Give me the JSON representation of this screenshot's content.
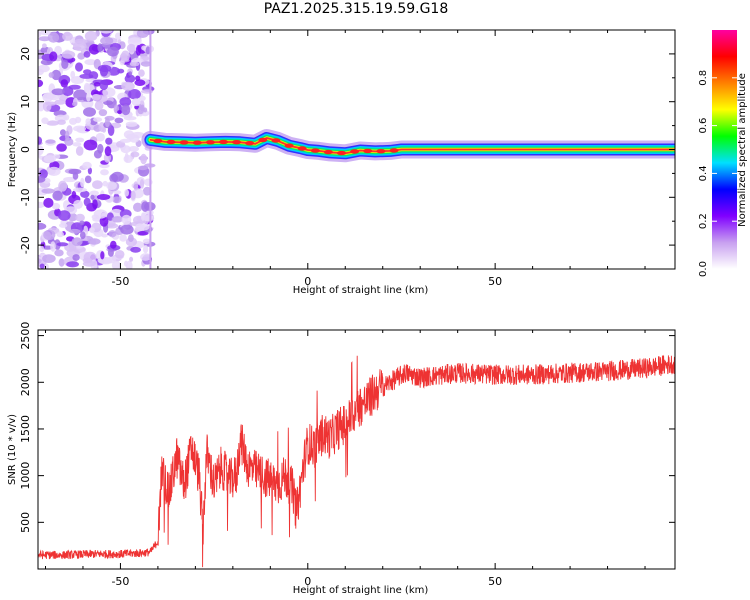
{
  "title": "PAZ1.2025.315.19.59.G18",
  "chart_data": [
    {
      "type": "heatmap",
      "title": "PAZ1.2025.315.19.59.G18",
      "xlabel": "Height of straight line (km)",
      "ylabel": "Frequency (Hz)",
      "xlim": [
        -72,
        98
      ],
      "ylim": [
        -25,
        25
      ],
      "xticks": [
        -50,
        0,
        50
      ],
      "yticks": [
        -20,
        -10,
        0,
        10,
        20
      ],
      "noise_region": {
        "x_range": [
          -72,
          -42
        ],
        "freq_range": [
          -25,
          25
        ],
        "level": "low (0.0-0.2)"
      },
      "ridge": {
        "height_km": [
          -42,
          -38,
          -34,
          -30,
          -26,
          -22,
          -18,
          -14,
          -11,
          -8,
          -5,
          -2,
          0,
          3,
          6,
          10,
          14,
          18,
          22,
          25,
          30,
          40,
          50,
          60,
          70,
          80,
          90,
          98
        ],
        "freq_hz": [
          2.0,
          1.6,
          1.5,
          1.4,
          1.5,
          1.6,
          1.5,
          1.2,
          2.4,
          1.8,
          0.8,
          0.3,
          -0.1,
          -0.3,
          -0.6,
          -0.8,
          -0.2,
          -0.4,
          -0.3,
          0.0,
          0.0,
          0.0,
          0.0,
          0.0,
          0.0,
          0.0,
          0.0,
          0.0
        ]
      },
      "colorbar": {
        "label": "Normalized spectral amplitude",
        "range": [
          0.0,
          1.0
        ],
        "ticks": [
          "0.0",
          "0.2",
          "0.4",
          "0.6",
          "0.8"
        ],
        "colors": [
          "#ffffff",
          "#c8a0f0",
          "#8000ff",
          "#0000ff",
          "#00e0ff",
          "#00ff00",
          "#ffff00",
          "#ff8000",
          "#ff0000",
          "#ff00a0"
        ]
      }
    },
    {
      "type": "line",
      "xlabel": "Height of straight line (km)",
      "ylabel": "SNR (10 * v/v)",
      "xlim": [
        -72,
        98
      ],
      "ylim": [
        0,
        2560
      ],
      "xticks": [
        -50,
        0,
        50
      ],
      "yticks": [
        500,
        1000,
        1500,
        2000,
        2500
      ],
      "color": "#ee3333",
      "x": [
        -72,
        -65,
        -58,
        -50,
        -45,
        -42,
        -40,
        -39,
        -37,
        -35,
        -33,
        -31,
        -29,
        -28,
        -27,
        -25,
        -23,
        -21,
        -19,
        -18,
        -16,
        -14,
        -12,
        -10,
        -8,
        -6,
        -4,
        -3,
        -1,
        0,
        2,
        4,
        6,
        8,
        10,
        12,
        14,
        16,
        18,
        20,
        22,
        24,
        26,
        30,
        40,
        50,
        60,
        70,
        80,
        90,
        98
      ],
      "y": [
        150,
        150,
        160,
        160,
        170,
        180,
        300,
        1050,
        800,
        1200,
        900,
        1300,
        1000,
        400,
        1250,
        900,
        1100,
        950,
        1000,
        1400,
        1100,
        1050,
        1000,
        950,
        900,
        1000,
        850,
        600,
        1150,
        1350,
        1300,
        1450,
        1400,
        1500,
        1550,
        1650,
        1750,
        1800,
        1900,
        1950,
        2000,
        2050,
        2100,
        2050,
        2100,
        2080,
        2080,
        2100,
        2120,
        2150,
        2200
      ]
    }
  ]
}
